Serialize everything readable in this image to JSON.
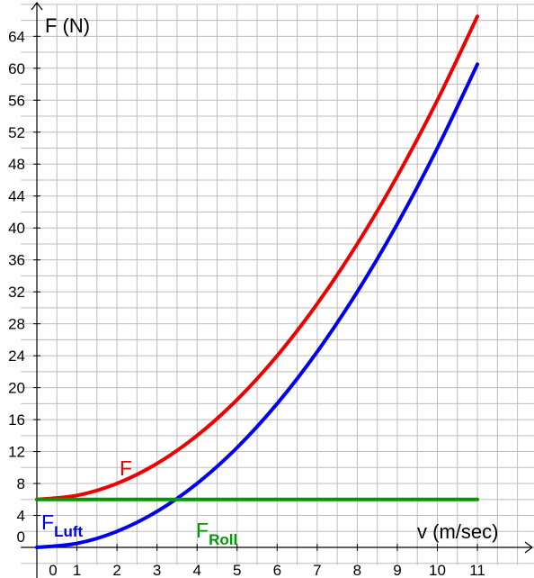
{
  "chart_data": {
    "type": "line",
    "title": "",
    "xlabel": "v (m/sec)",
    "ylabel": "F (N)",
    "xlim": [
      -0.4,
      12.5
    ],
    "ylim": [
      -2.2,
      68
    ],
    "x_ticks": [
      0,
      1,
      2,
      3,
      4,
      5,
      6,
      7,
      8,
      9,
      10,
      11
    ],
    "y_ticks": [
      0,
      4,
      8,
      12,
      16,
      20,
      24,
      28,
      32,
      36,
      40,
      44,
      48,
      52,
      56,
      60,
      64
    ],
    "x_tick_labels": [
      "0",
      "1",
      "2",
      "3",
      "4",
      "5",
      "6",
      "7",
      "8",
      "9",
      "10",
      "11"
    ],
    "y_tick_labels": [
      "0",
      "4",
      "8",
      "12",
      "16",
      "20",
      "24",
      "28",
      "32",
      "36",
      "40",
      "44",
      "48",
      "52",
      "56",
      "60",
      "64"
    ],
    "grid": true,
    "grid_step_x": 0.5,
    "grid_step_y": 2,
    "x": [
      0,
      1,
      2,
      3,
      4,
      5,
      6,
      7,
      8,
      9,
      10,
      11
    ],
    "series": [
      {
        "name": "F",
        "sub": "",
        "color": "#ee0000",
        "values": [
          6.0,
          6.5,
          8.0,
          10.5,
          14.0,
          18.5,
          24.0,
          30.5,
          38.0,
          46.5,
          56.0,
          66.5
        ]
      },
      {
        "name": "F",
        "sub": "Luft",
        "color": "#0000ee",
        "values": [
          0.0,
          0.5,
          2.0,
          4.5,
          8.0,
          12.5,
          18.0,
          24.5,
          32.0,
          40.5,
          50.0,
          60.5
        ]
      },
      {
        "name": "F",
        "sub": "Roll",
        "color": "#009900",
        "values": [
          6,
          6,
          6,
          6,
          6,
          6,
          6,
          6,
          6,
          6,
          6,
          6
        ]
      }
    ]
  }
}
